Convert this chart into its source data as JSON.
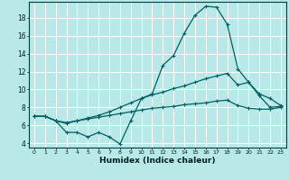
{
  "x": [
    0,
    1,
    2,
    3,
    4,
    5,
    6,
    7,
    8,
    9,
    10,
    11,
    12,
    13,
    14,
    15,
    16,
    17,
    18,
    19,
    20,
    21,
    22,
    23
  ],
  "line1": [
    7.0,
    7.0,
    6.5,
    5.2,
    5.2,
    4.7,
    5.2,
    4.7,
    3.9,
    6.5,
    9.0,
    9.5,
    12.7,
    13.8,
    16.3,
    18.3,
    19.3,
    19.2,
    17.3,
    12.3,
    10.8,
    9.3,
    8.0,
    8.1
  ],
  "line2": [
    7.0,
    7.0,
    6.5,
    6.2,
    6.5,
    6.8,
    7.1,
    7.5,
    8.0,
    8.5,
    9.0,
    9.4,
    9.7,
    10.1,
    10.4,
    10.8,
    11.2,
    11.5,
    11.8,
    10.5,
    10.8,
    9.5,
    9.0,
    8.2
  ],
  "line3": [
    7.0,
    7.0,
    6.5,
    6.3,
    6.5,
    6.7,
    6.9,
    7.1,
    7.3,
    7.5,
    7.7,
    7.9,
    8.0,
    8.1,
    8.3,
    8.4,
    8.5,
    8.7,
    8.8,
    8.2,
    7.9,
    7.8,
    7.8,
    8.0
  ],
  "bg_color": "#b8e8e8",
  "grid_color": "#ffffff",
  "line_color": "#006060",
  "xlabel": "Humidex (Indice chaleur)",
  "ylim": [
    3.5,
    19.8
  ],
  "xlim": [
    -0.5,
    23.5
  ],
  "yticks": [
    4,
    6,
    8,
    10,
    12,
    14,
    16,
    18
  ],
  "xticks": [
    0,
    1,
    2,
    3,
    4,
    5,
    6,
    7,
    8,
    9,
    10,
    11,
    12,
    13,
    14,
    15,
    16,
    17,
    18,
    19,
    20,
    21,
    22,
    23
  ]
}
